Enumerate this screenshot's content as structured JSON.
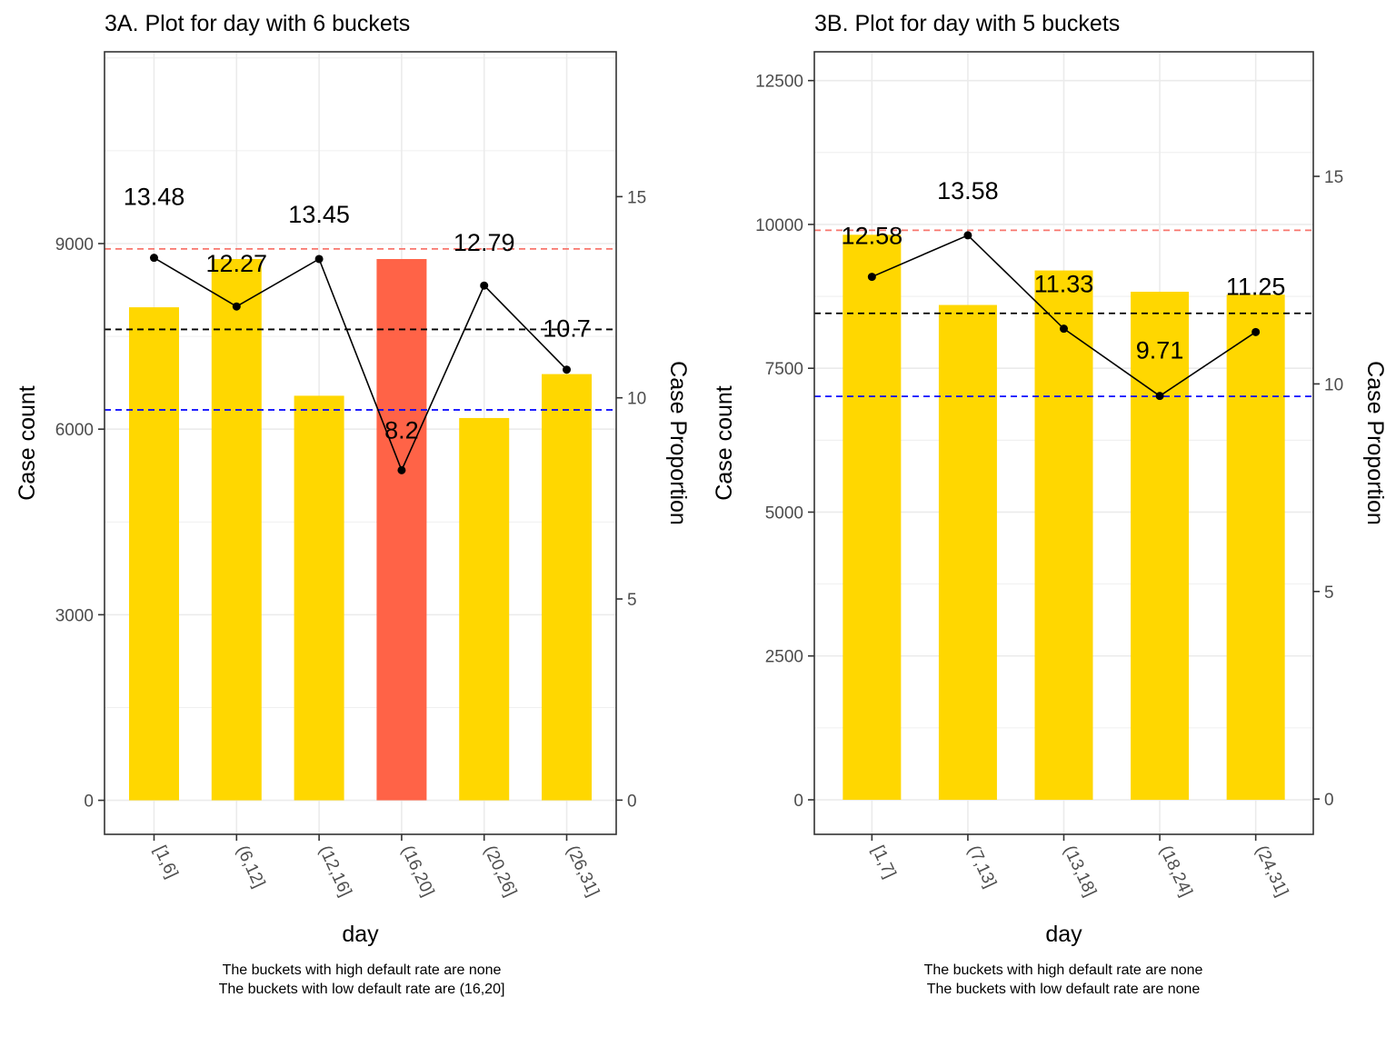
{
  "chart_data": [
    {
      "type": "bar",
      "title": "3A. Plot for day with 6 buckets",
      "xlabel": "day",
      "ylabel": "Case count",
      "y2label": "Case Proportion",
      "categories": [
        "[1,6]",
        "(6,12]",
        "(12,16]",
        "(16,20]",
        "(20,26]",
        "(26,31]"
      ],
      "series": [
        {
          "values": [
            7970,
            8750,
            6540,
            8750,
            6180,
            6890
          ]
        },
        {
          "values": [
            13.48,
            12.27,
            13.45,
            8.2,
            12.79,
            10.7
          ]
        }
      ],
      "bar_colors": [
        "#FFD700",
        "#FFD700",
        "#FFD700",
        "#FF6347",
        "#FFD700",
        "#FFD700"
      ],
      "line_labels": [
        "13.48",
        "12.27",
        "13.45",
        "8.2",
        "12.79",
        "10.7"
      ],
      "ylim": [
        -550,
        12100
      ],
      "y2lim": [
        -0.85,
        18.6
      ],
      "yticks": [
        0,
        3000,
        6000,
        9000
      ],
      "y2ticks": [
        0,
        5,
        10,
        15
      ],
      "ref_lines": [
        {
          "value": 13.7,
          "color": "#F8766D"
        },
        {
          "value": 11.7,
          "color": "#000000"
        },
        {
          "value": 9.7,
          "color": "#0000FF"
        }
      ],
      "caption": [
        "The buckets with high default rate are none",
        "The buckets with low default rate are (16,20]"
      ],
      "grid": true
    },
    {
      "type": "bar",
      "title": "3B. Plot for day with 5 buckets",
      "xlabel": "day",
      "ylabel": "Case count",
      "y2label": "Case Proportion",
      "categories": [
        "[1,7]",
        "(7,13]",
        "(13,18]",
        "(18,24]",
        "(24,31]"
      ],
      "series": [
        {
          "values": [
            9820,
            8600,
            9200,
            8830,
            8780
          ]
        },
        {
          "values": [
            12.58,
            13.58,
            11.33,
            9.71,
            11.25
          ]
        }
      ],
      "bar_colors": [
        "#FFD700",
        "#FFD700",
        "#FFD700",
        "#FFD700",
        "#FFD700"
      ],
      "line_labels": [
        "12.58",
        "13.58",
        "11.33",
        "9.71",
        "11.25"
      ],
      "ylim": [
        -600,
        13000
      ],
      "y2lim": [
        -0.85,
        18.0
      ],
      "yticks": [
        0,
        2500,
        5000,
        7500,
        10000,
        12500
      ],
      "y2ticks": [
        0,
        5,
        10,
        15
      ],
      "ref_lines": [
        {
          "value": 13.7,
          "color": "#F8766D"
        },
        {
          "value": 11.7,
          "color": "#000000"
        },
        {
          "value": 9.7,
          "color": "#0000FF"
        }
      ],
      "caption": [
        "The buckets with high default rate are none",
        "The buckets with low default rate are none"
      ],
      "grid": true
    }
  ]
}
